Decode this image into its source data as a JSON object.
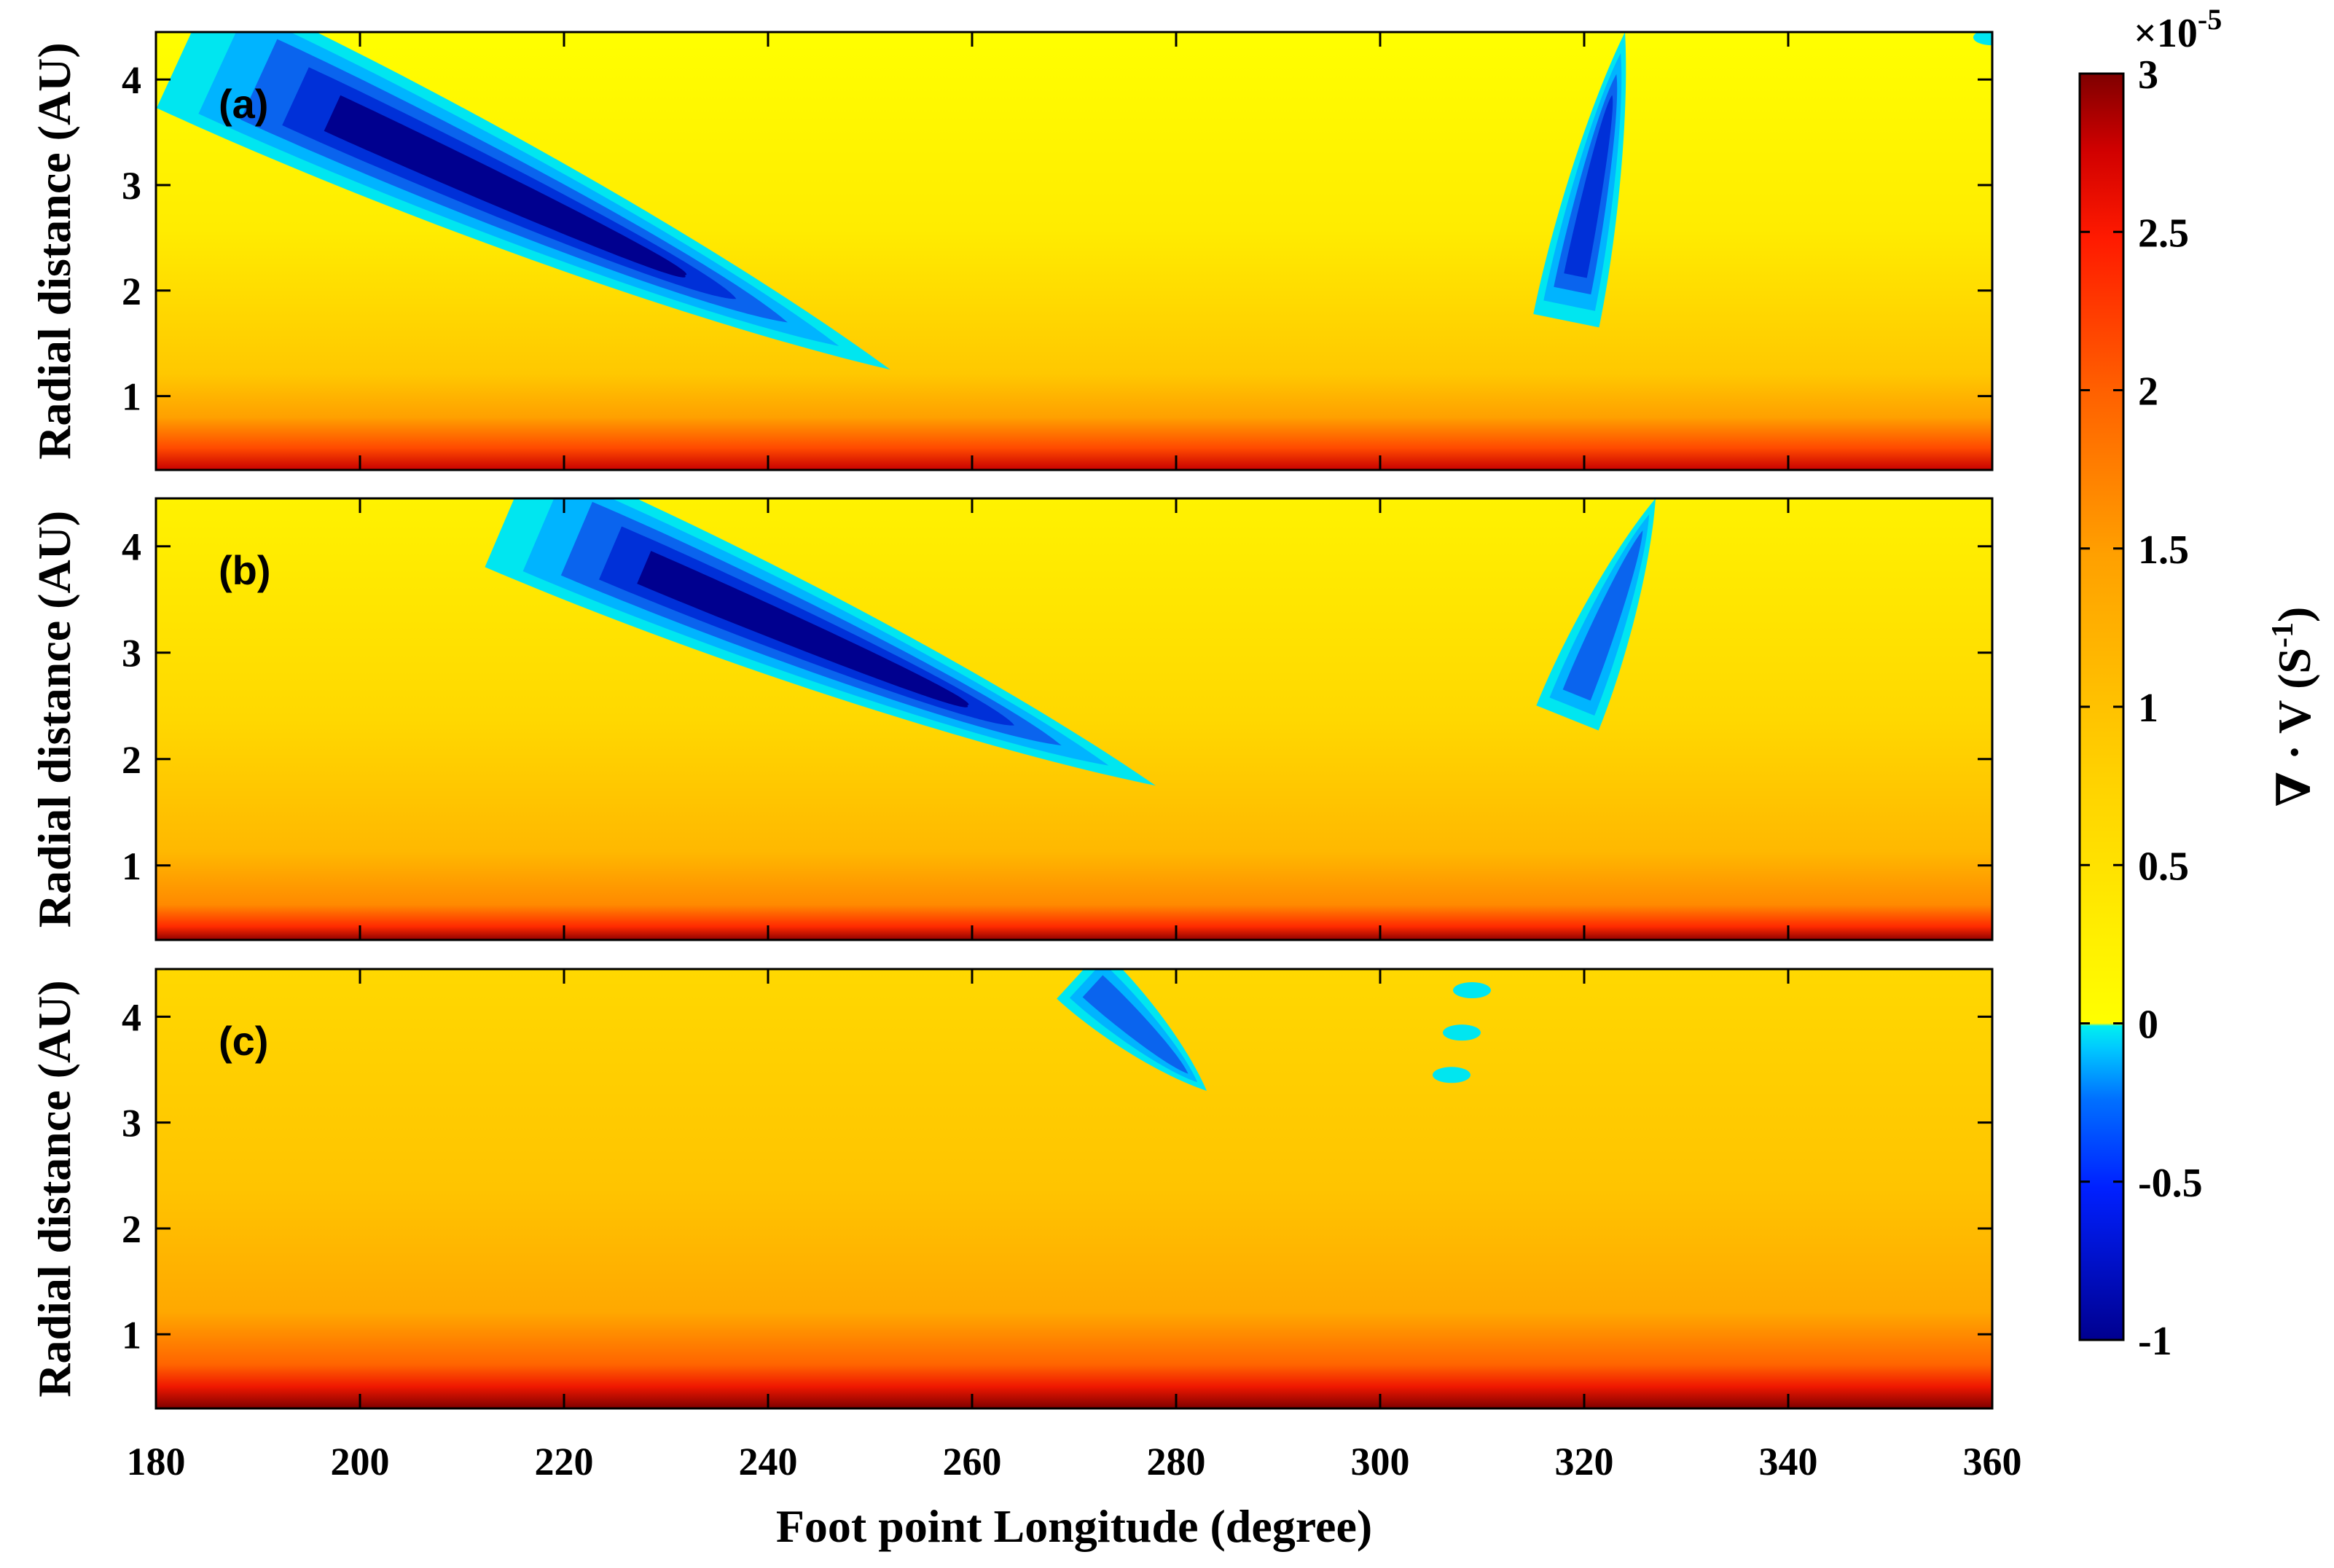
{
  "chart_data": {
    "type": "heatmap",
    "xlabel": "Foot point Longitude (degree)",
    "ylabel": "Radial distance (AU)",
    "xlim": [
      180,
      360
    ],
    "ylim": [
      0.3,
      4.45
    ],
    "x_ticks": [
      "180",
      "200",
      "220",
      "240",
      "260",
      "280",
      "300",
      "320",
      "340",
      "360"
    ],
    "y_ticks": [
      "1",
      "2",
      "3",
      "4"
    ],
    "colorbar": {
      "label": "∇ · V (S⁻¹)",
      "label_main": "∇ · V (S",
      "label_sup": "-1",
      "label_close": ")",
      "multiplier": "×10",
      "multiplier_exp": "-5",
      "range": [
        -1,
        3
      ],
      "ticks": [
        "3",
        "2.5",
        "2",
        "1.5",
        "1",
        "0.5",
        "0",
        "-0.5",
        "-1"
      ],
      "colors": {
        "deep_negative": "#00008f",
        "negative": "#0a50e6",
        "near_zero_negative": "#00e6f0",
        "zero": "#ffff00",
        "mid": "#ffb400",
        "high": "#ff2000",
        "max": "#7f0000"
      }
    },
    "panels": [
      {
        "label": "(a)",
        "features": [
          {
            "kind": "negative_band",
            "from": [
              180,
              4.45
            ],
            "to": [
              252,
              1.25
            ],
            "min_value": -0.9
          },
          {
            "kind": "negative_band",
            "from": [
              318,
              1.6
            ],
            "to": [
              324,
              4.45
            ],
            "min_value": -0.7
          },
          {
            "kind": "negative_patch",
            "at": [
              360,
              4.4
            ],
            "min_value": -0.2
          }
        ]
      },
      {
        "label": "(b)",
        "features": [
          {
            "kind": "negative_band",
            "from": [
              212,
              4.45
            ],
            "to": [
              278,
              1.75
            ],
            "min_value": -0.9
          },
          {
            "kind": "negative_band",
            "from": [
              318,
              2.3
            ],
            "to": [
              327,
              4.45
            ],
            "min_value": -0.5
          }
        ]
      },
      {
        "label": "(c)",
        "features": [
          {
            "kind": "negative_band",
            "from": [
              270,
              4.45
            ],
            "to": [
              283,
              3.3
            ],
            "min_value": -0.5
          },
          {
            "kind": "negative_patch",
            "at": [
              308,
              3.85
            ],
            "min_value": -0.2
          },
          {
            "kind": "negative_patch",
            "at": [
              309,
              4.25
            ],
            "min_value": -0.1
          },
          {
            "kind": "negative_patch",
            "at": [
              307,
              3.45
            ],
            "min_value": -0.1
          }
        ]
      }
    ]
  }
}
